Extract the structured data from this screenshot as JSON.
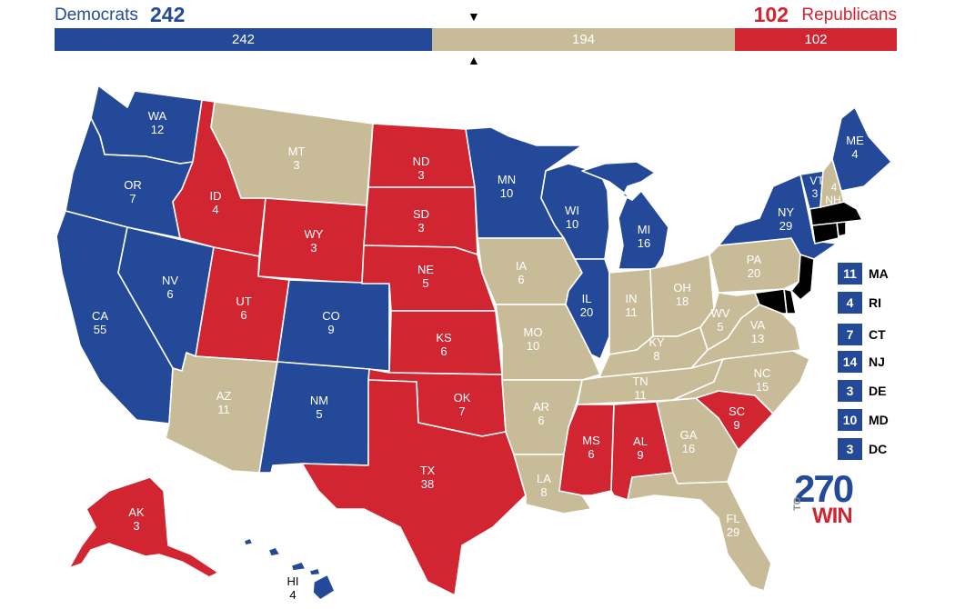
{
  "header": {
    "dem_label": "Democrats",
    "dem_total": "242",
    "rep_total": "102",
    "rep_label": "Republicans",
    "bar": [
      {
        "name": "dem",
        "value": "242",
        "color": "#244999",
        "text_color": "#ffffff"
      },
      {
        "name": "tossup",
        "value": "194",
        "color": "#c8bc98",
        "text_color": "#ffffff"
      },
      {
        "name": "rep",
        "value": "102",
        "color": "#d22532",
        "text_color": "#ffffff"
      }
    ],
    "marker_top": "▼",
    "marker_bottom": "▲"
  },
  "colors": {
    "dem": "#244999",
    "rep": "#d22532",
    "tossup": "#c8bc98"
  },
  "states": {
    "WA": {
      "abbr": "WA",
      "ev": "12",
      "party": "dem"
    },
    "OR": {
      "abbr": "OR",
      "ev": "7",
      "party": "dem"
    },
    "CA": {
      "abbr": "CA",
      "ev": "55",
      "party": "dem"
    },
    "NV": {
      "abbr": "NV",
      "ev": "6",
      "party": "dem"
    },
    "ID": {
      "abbr": "ID",
      "ev": "4",
      "party": "rep"
    },
    "MT": {
      "abbr": "MT",
      "ev": "3",
      "party": "tossup"
    },
    "WY": {
      "abbr": "WY",
      "ev": "3",
      "party": "rep"
    },
    "UT": {
      "abbr": "UT",
      "ev": "6",
      "party": "rep"
    },
    "AZ": {
      "abbr": "AZ",
      "ev": "11",
      "party": "tossup"
    },
    "CO": {
      "abbr": "CO",
      "ev": "9",
      "party": "dem"
    },
    "NM": {
      "abbr": "NM",
      "ev": "5",
      "party": "dem"
    },
    "ND": {
      "abbr": "ND",
      "ev": "3",
      "party": "rep"
    },
    "SD": {
      "abbr": "SD",
      "ev": "3",
      "party": "rep"
    },
    "NE": {
      "abbr": "NE",
      "ev": "5",
      "party": "rep"
    },
    "KS": {
      "abbr": "KS",
      "ev": "6",
      "party": "rep"
    },
    "OK": {
      "abbr": "OK",
      "ev": "7",
      "party": "rep"
    },
    "TX": {
      "abbr": "TX",
      "ev": "38",
      "party": "rep"
    },
    "MN": {
      "abbr": "MN",
      "ev": "10",
      "party": "dem"
    },
    "IA": {
      "abbr": "IA",
      "ev": "6",
      "party": "tossup"
    },
    "MO": {
      "abbr": "MO",
      "ev": "10",
      "party": "tossup"
    },
    "AR": {
      "abbr": "AR",
      "ev": "6",
      "party": "tossup"
    },
    "LA": {
      "abbr": "LA",
      "ev": "8",
      "party": "tossup"
    },
    "WI": {
      "abbr": "WI",
      "ev": "10",
      "party": "dem"
    },
    "IL": {
      "abbr": "IL",
      "ev": "20",
      "party": "dem"
    },
    "MI": {
      "abbr": "MI",
      "ev": "16",
      "party": "dem"
    },
    "IN": {
      "abbr": "IN",
      "ev": "11",
      "party": "tossup"
    },
    "OH": {
      "abbr": "OH",
      "ev": "18",
      "party": "tossup"
    },
    "KY": {
      "abbr": "KY",
      "ev": "8",
      "party": "tossup"
    },
    "TN": {
      "abbr": "TN",
      "ev": "11",
      "party": "tossup"
    },
    "MS": {
      "abbr": "MS",
      "ev": "6",
      "party": "rep"
    },
    "AL": {
      "abbr": "AL",
      "ev": "9",
      "party": "rep"
    },
    "GA": {
      "abbr": "GA",
      "ev": "16",
      "party": "tossup"
    },
    "FL": {
      "abbr": "FL",
      "ev": "29",
      "party": "tossup"
    },
    "SC": {
      "abbr": "SC",
      "ev": "9",
      "party": "rep"
    },
    "NC": {
      "abbr": "NC",
      "ev": "15",
      "party": "tossup"
    },
    "VA": {
      "abbr": "VA",
      "ev": "13",
      "party": "tossup"
    },
    "WV": {
      "abbr": "WV",
      "ev": "5",
      "party": "tossup"
    },
    "PA": {
      "abbr": "PA",
      "ev": "20",
      "party": "tossup"
    },
    "NY": {
      "abbr": "NY",
      "ev": "29",
      "party": "dem"
    },
    "VT": {
      "abbr": "VT",
      "ev": "3",
      "party": "dem"
    },
    "NH": {
      "abbr": "NH",
      "ev": "4",
      "party": "tossup"
    },
    "ME": {
      "abbr": "ME",
      "ev": "4",
      "party": "dem"
    },
    "AK": {
      "abbr": "AK",
      "ev": "3",
      "party": "rep"
    },
    "HI": {
      "abbr": "HI",
      "ev": "4",
      "party": "dem"
    }
  },
  "small_states": [
    {
      "abbr": "MA",
      "ev": "11",
      "party": "dem"
    },
    {
      "abbr": "RI",
      "ev": "4",
      "party": "dem"
    },
    {
      "abbr": "CT",
      "ev": "7",
      "party": "dem"
    },
    {
      "abbr": "NJ",
      "ev": "14",
      "party": "dem"
    },
    {
      "abbr": "DE",
      "ev": "3",
      "party": "dem"
    },
    {
      "abbr": "MD",
      "ev": "10",
      "party": "dem"
    },
    {
      "abbr": "DC",
      "ev": "3",
      "party": "dem"
    }
  ],
  "logo": {
    "number": "270",
    "to": "TO",
    "win": "WIN"
  }
}
